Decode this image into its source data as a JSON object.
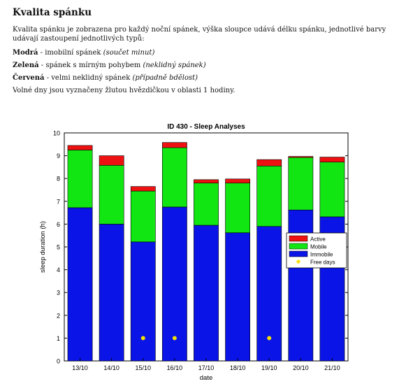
{
  "document": {
    "heading": "Kvalita spánku",
    "intro": "Kvalita spánku je zobrazena pro každý noční spánek, výška sloupce udává délku spánku, jednotlivé barvy udávají zastoupení jednotlivých typů:",
    "legend_lines": [
      {
        "term": "Modrá",
        "sep": " - ",
        "desc": "imobilní spánek ",
        "note": "(součet minut)"
      },
      {
        "term": "Zelená",
        "sep": " - ",
        "desc": "spánek s mírným pohybem ",
        "note": "(neklidný spánek)"
      },
      {
        "term": "Červená",
        "sep": " - ",
        "desc": "velmi neklidný spánek ",
        "note": "(případně bdělost)"
      }
    ],
    "free_days_note": "Volné dny jsou vyznačeny žlutou hvězdičkou v oblasti 1 hodiny."
  },
  "chart_data": {
    "type": "bar",
    "stacked": true,
    "title": "ID 430 - Sleep Analyses",
    "xlabel": "date",
    "ylabel": "sleep duration (h)",
    "ylim": [
      0,
      10
    ],
    "yticks": [
      0,
      1,
      2,
      3,
      4,
      5,
      6,
      7,
      8,
      9,
      10
    ],
    "categories": [
      "13/10",
      "14/10",
      "15/10",
      "16/10",
      "17/10",
      "18/10",
      "19/10",
      "20/10",
      "21/10"
    ],
    "series": [
      {
        "name": "Immobile",
        "color": "#0a14e6",
        "values": [
          6.72,
          6.0,
          5.22,
          6.75,
          5.95,
          5.62,
          5.9,
          6.62,
          6.32
        ]
      },
      {
        "name": "Mobile",
        "color": "#12e612",
        "values": [
          2.53,
          2.58,
          2.23,
          2.6,
          1.85,
          2.18,
          2.65,
          2.3,
          2.4
        ]
      },
      {
        "name": "Active",
        "color": "#ee1111",
        "values": [
          0.2,
          0.42,
          0.2,
          0.23,
          0.15,
          0.18,
          0.28,
          0.05,
          0.22
        ]
      }
    ],
    "free_days": {
      "name": "Free days",
      "color": "#f5e000",
      "y": 1,
      "categories": [
        "15/10",
        "16/10",
        "19/10"
      ]
    },
    "legend_position": "center-right",
    "grid": false
  }
}
